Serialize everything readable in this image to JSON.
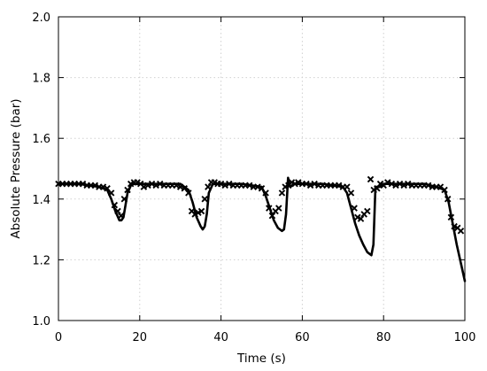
{
  "chart_data": {
    "type": "line",
    "xlabel": "Time (s)",
    "ylabel": "Absolute Pressure (bar)",
    "xlim": [
      0,
      100
    ],
    "ylim": [
      1.0,
      2.0
    ],
    "xticks": [
      0,
      20,
      40,
      60,
      80,
      100
    ],
    "yticks": [
      1.0,
      1.2,
      1.4,
      1.6,
      1.8,
      2.0
    ],
    "xtick_labels": [
      "0",
      "20",
      "40",
      "60",
      "80",
      "100"
    ],
    "ytick_labels": [
      "1.0",
      "1.2",
      "1.4",
      "1.6",
      "1.8",
      "2.0"
    ],
    "grid": true,
    "legend": "none",
    "colors": {
      "line": "#000000",
      "markers": "#000000",
      "grid": "#d0d0d0"
    },
    "series": [
      {
        "style": "solid-line",
        "x": [
          0,
          5,
          10,
          12,
          13,
          14,
          15,
          15.5,
          16,
          16.5,
          17,
          18,
          20,
          25,
          30,
          32,
          33,
          34,
          35,
          35.5,
          36,
          36.5,
          37,
          38,
          40,
          45,
          50,
          51,
          52,
          53,
          54,
          55,
          55.5,
          56,
          56.5,
          57,
          58,
          60,
          65,
          70,
          71,
          72,
          73,
          74,
          75,
          76,
          77,
          77.5,
          78,
          79,
          80,
          85,
          90,
          93,
          95,
          96,
          97,
          98,
          99,
          100
        ],
        "y": [
          1.45,
          1.45,
          1.44,
          1.43,
          1.4,
          1.36,
          1.33,
          1.33,
          1.34,
          1.38,
          1.42,
          1.45,
          1.45,
          1.45,
          1.45,
          1.43,
          1.39,
          1.34,
          1.31,
          1.3,
          1.31,
          1.35,
          1.42,
          1.45,
          1.45,
          1.45,
          1.44,
          1.41,
          1.37,
          1.33,
          1.305,
          1.295,
          1.3,
          1.35,
          1.47,
          1.44,
          1.45,
          1.45,
          1.45,
          1.44,
          1.42,
          1.37,
          1.32,
          1.28,
          1.25,
          1.225,
          1.215,
          1.25,
          1.44,
          1.44,
          1.45,
          1.45,
          1.45,
          1.44,
          1.43,
          1.39,
          1.32,
          1.25,
          1.19,
          1.13
        ]
      },
      {
        "style": "x-markers",
        "x": [
          0,
          1,
          2,
          3,
          4,
          5,
          6,
          7,
          8,
          9,
          10,
          11,
          12,
          13,
          13.8,
          14.6,
          15.4,
          16.2,
          17,
          17.8,
          18.6,
          19.4,
          20.2,
          21,
          22,
          23,
          24,
          25,
          26,
          27,
          28,
          29,
          30,
          31,
          32,
          32.8,
          33.6,
          34.4,
          35.2,
          36,
          36.8,
          37.6,
          38.4,
          39.2,
          40,
          41,
          42,
          43,
          44,
          45,
          46,
          47,
          48,
          49,
          50,
          51,
          51.8,
          52.6,
          53.4,
          54.2,
          55,
          55.8,
          56.6,
          57.4,
          58.2,
          59,
          60,
          61,
          62,
          63,
          64,
          65,
          66,
          67,
          68,
          69,
          70,
          71,
          72,
          72.8,
          73.6,
          74.4,
          75.2,
          76,
          76.8,
          77.6,
          78.4,
          79.2,
          80,
          81,
          82,
          83,
          84,
          85,
          86,
          87,
          88,
          89,
          90,
          91,
          92,
          93,
          94,
          95,
          95.8,
          96.6,
          97.4,
          98.2,
          99
        ],
        "y": [
          1.45,
          1.45,
          1.45,
          1.45,
          1.45,
          1.45,
          1.45,
          1.445,
          1.445,
          1.445,
          1.44,
          1.44,
          1.435,
          1.42,
          1.38,
          1.36,
          1.345,
          1.4,
          1.43,
          1.45,
          1.455,
          1.455,
          1.45,
          1.44,
          1.445,
          1.45,
          1.445,
          1.45,
          1.445,
          1.445,
          1.445,
          1.445,
          1.44,
          1.435,
          1.42,
          1.36,
          1.35,
          1.355,
          1.36,
          1.4,
          1.44,
          1.455,
          1.455,
          1.45,
          1.45,
          1.445,
          1.45,
          1.445,
          1.445,
          1.445,
          1.445,
          1.445,
          1.44,
          1.44,
          1.435,
          1.42,
          1.37,
          1.345,
          1.36,
          1.37,
          1.42,
          1.44,
          1.445,
          1.455,
          1.45,
          1.455,
          1.45,
          1.45,
          1.445,
          1.45,
          1.445,
          1.445,
          1.445,
          1.445,
          1.445,
          1.445,
          1.44,
          1.44,
          1.42,
          1.37,
          1.34,
          1.335,
          1.35,
          1.36,
          1.465,
          1.43,
          1.435,
          1.45,
          1.445,
          1.455,
          1.45,
          1.445,
          1.45,
          1.445,
          1.45,
          1.445,
          1.445,
          1.445,
          1.445,
          1.445,
          1.44,
          1.44,
          1.44,
          1.43,
          1.4,
          1.34,
          1.31,
          1.305,
          1.295
        ]
      }
    ]
  }
}
